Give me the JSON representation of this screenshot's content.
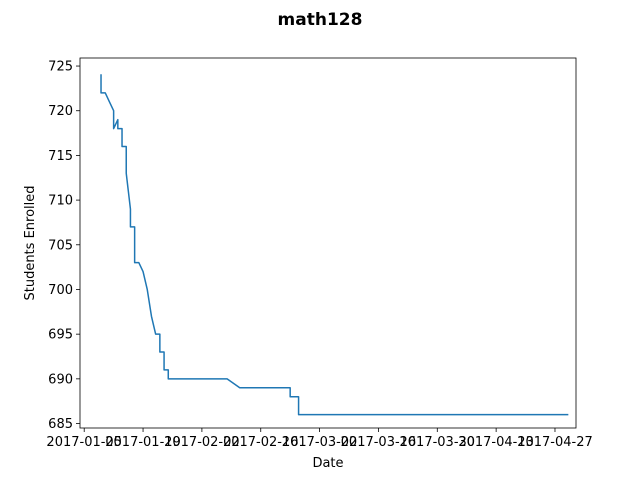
{
  "chart_data": {
    "type": "line",
    "title": "math128",
    "xlabel": "Date",
    "ylabel": "Students Enrolled",
    "x_tick_labels": [
      "2017-01-05",
      "2017-01-19",
      "2017-02-02",
      "2017-02-16",
      "2017-03-02",
      "2017-03-16",
      "2017-03-30",
      "2017-04-13",
      "2017-04-27"
    ],
    "y_ticks": [
      685,
      690,
      695,
      700,
      705,
      710,
      715,
      720,
      725
    ],
    "xlim": [
      "2017-01-04",
      "2017-05-02"
    ],
    "ylim": [
      684.5,
      725.9
    ],
    "grid": false,
    "colors": {
      "line": "#1f77b4"
    },
    "series": [
      {
        "x": [
          "2017-01-09",
          "2017-01-09",
          "2017-01-10",
          "2017-01-11",
          "2017-01-11",
          "2017-01-12",
          "2017-01-12",
          "2017-01-13",
          "2017-01-13",
          "2017-01-14",
          "2017-01-14",
          "2017-01-15",
          "2017-01-15",
          "2017-01-16",
          "2017-01-16",
          "2017-01-17",
          "2017-01-17",
          "2017-01-18",
          "2017-01-19",
          "2017-01-19",
          "2017-01-20",
          "2017-01-20",
          "2017-01-21",
          "2017-01-21",
          "2017-01-22",
          "2017-01-23",
          "2017-01-23",
          "2017-01-24",
          "2017-01-24",
          "2017-01-25",
          "2017-01-25",
          "2017-01-26",
          "2017-01-26",
          "2017-02-08",
          "2017-02-11",
          "2017-02-23",
          "2017-02-23",
          "2017-02-25",
          "2017-02-25",
          "2017-04-30"
        ],
        "y": [
          724,
          722,
          722,
          721,
          721,
          720,
          718,
          719,
          718,
          718,
          716,
          716,
          713,
          709,
          707,
          707,
          703,
          703,
          702,
          702,
          700,
          700,
          697,
          697,
          695,
          695,
          693,
          693,
          691,
          691,
          690,
          690,
          690,
          690,
          689,
          689,
          688,
          688,
          686,
          686
        ]
      }
    ]
  }
}
